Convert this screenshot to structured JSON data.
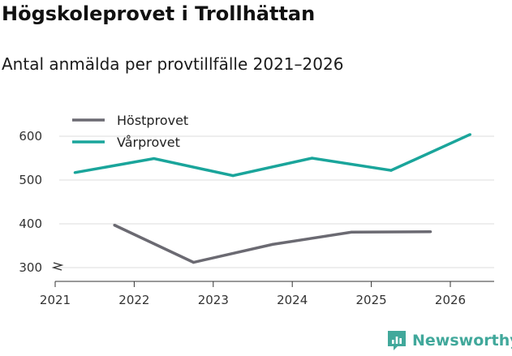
{
  "title": "Högskoleprovet i Trollhättan",
  "subtitle": "Antal anmälda per provtillfälle 2021–2026",
  "brand": {
    "name": "Newsworthy",
    "color": "#41a89b"
  },
  "chart_data": {
    "type": "line",
    "title": "Högskoleprovet i Trollhättan",
    "subtitle": "Antal anmälda per provtillfälle 2021–2026",
    "xlabel": "",
    "ylabel": "",
    "x_ticks": [
      "2021",
      "2022",
      "2023",
      "2024",
      "2025",
      "2026"
    ],
    "y_ticks": [
      300,
      400,
      500,
      600
    ],
    "ylim": [
      280,
      620
    ],
    "xlim": [
      2021,
      2026.55
    ],
    "grid": true,
    "legend_position": "top-left",
    "series": [
      {
        "name": "Höstprovet",
        "color": "#6b6a72",
        "x": [
          2021.75,
          2022.75,
          2023.75,
          2024.75,
          2025.75
        ],
        "values": [
          397,
          312,
          353,
          381,
          382
        ]
      },
      {
        "name": "Vårprovet",
        "color": "#1aa59b",
        "x": [
          2021.25,
          2022.25,
          2023.25,
          2024.25,
          2025.25,
          2026.25
        ],
        "values": [
          517,
          549,
          510,
          550,
          522,
          604
        ]
      }
    ]
  }
}
